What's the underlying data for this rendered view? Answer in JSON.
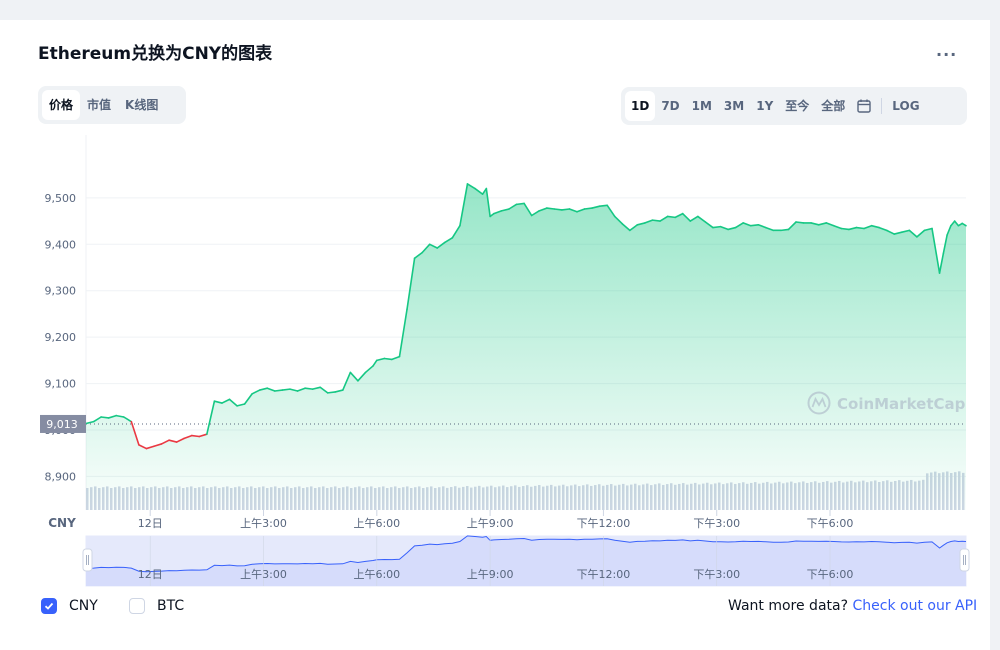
{
  "header": {
    "title": "Ethereum兑换为CNY的图表",
    "more": "..."
  },
  "tabs": [
    "价格",
    "市值",
    "K线图"
  ],
  "ranges": [
    "1D",
    "7D",
    "1M",
    "3M",
    "1Y",
    "至今",
    "全部"
  ],
  "log_label": "LOG",
  "watermark": "CoinMarketCap",
  "currency_axis_label": "CNY",
  "current_price_label": "9,013",
  "legend": {
    "cny": "CNY",
    "btc": "BTC"
  },
  "footer": {
    "text": "Want more data?",
    "link": "Check out our API"
  },
  "colors": {
    "up": "#16c784",
    "down": "#ea3943",
    "accent": "#3861fb",
    "nav_line": "#3861fb"
  },
  "chart_data": {
    "type": "area",
    "ylim": [
      8860,
      9560
    ],
    "y_ticks": [
      8900,
      9000,
      9100,
      9200,
      9300,
      9400,
      9500
    ],
    "y_tick_labels": [
      "8,900",
      "9,000",
      "9,100",
      "9,200",
      "9,300",
      "9,400",
      "9,500"
    ],
    "x_tick_labels": [
      "12日",
      "上午3:00",
      "上午6:00",
      "上午9:00",
      "下午12:00",
      "下午3:00",
      "下午6:00"
    ],
    "x_tick_hours": [
      0,
      3,
      6,
      9,
      12,
      15,
      18
    ],
    "x_range_hours": [
      -1.7,
      21.6
    ],
    "reference_price": 9013,
    "price_series": {
      "hours": [
        -1.7,
        -1.5,
        -1.3,
        -1.1,
        -0.9,
        -0.7,
        -0.5,
        -0.3,
        -0.1,
        0.1,
        0.3,
        0.5,
        0.7,
        0.9,
        1.1,
        1.3,
        1.5,
        1.7,
        1.9,
        2.1,
        2.3,
        2.5,
        2.7,
        2.9,
        3.1,
        3.3,
        3.5,
        3.7,
        3.9,
        4.1,
        4.3,
        4.5,
        4.7,
        4.9,
        5.1,
        5.3,
        5.5,
        5.7,
        5.9,
        6.0,
        6.2,
        6.4,
        6.6,
        6.8,
        7.0,
        7.2,
        7.4,
        7.6,
        7.8,
        8.0,
        8.2,
        8.4,
        8.6,
        8.8,
        8.9,
        9.0,
        9.1,
        9.3,
        9.5,
        9.7,
        9.9,
        10.1,
        10.3,
        10.5,
        10.7,
        10.9,
        11.1,
        11.3,
        11.5,
        11.7,
        11.9,
        12.1,
        12.3,
        12.5,
        12.7,
        12.9,
        13.1,
        13.3,
        13.5,
        13.7,
        13.9,
        14.1,
        14.3,
        14.5,
        14.7,
        14.9,
        15.1,
        15.3,
        15.5,
        15.7,
        15.9,
        16.1,
        16.3,
        16.5,
        16.7,
        16.9,
        17.1,
        17.3,
        17.5,
        17.7,
        17.9,
        18.1,
        18.3,
        18.5,
        18.7,
        18.9,
        19.1,
        19.3,
        19.5,
        19.7,
        19.9,
        20.1,
        20.3,
        20.5,
        20.7,
        20.9,
        21.0,
        21.1,
        21.2,
        21.3,
        21.4,
        21.5,
        21.6
      ],
      "values": [
        9014,
        9018,
        9028,
        9026,
        9031,
        9028,
        9018,
        8968,
        8960,
        8965,
        8970,
        8978,
        8974,
        8982,
        8988,
        8986,
        8991,
        9062,
        9058,
        9066,
        9052,
        9056,
        9078,
        9086,
        9090,
        9084,
        9086,
        9088,
        9084,
        9090,
        9088,
        9092,
        9080,
        9082,
        9086,
        9124,
        9106,
        9124,
        9138,
        9150,
        9154,
        9152,
        9158,
        9260,
        9370,
        9382,
        9400,
        9392,
        9404,
        9414,
        9440,
        9530,
        9520,
        9508,
        9520,
        9460,
        9466,
        9472,
        9476,
        9486,
        9488,
        9462,
        9472,
        9478,
        9476,
        9474,
        9476,
        9470,
        9476,
        9478,
        9482,
        9484,
        9460,
        9444,
        9430,
        9442,
        9446,
        9452,
        9450,
        9460,
        9458,
        9466,
        9450,
        9460,
        9448,
        9436,
        9438,
        9432,
        9436,
        9446,
        9440,
        9442,
        9436,
        9430,
        9430,
        9432,
        9448,
        9446,
        9446,
        9442,
        9446,
        9440,
        9434,
        9432,
        9436,
        9434,
        9440,
        9436,
        9430,
        9422,
        9426,
        9430,
        9416,
        9430,
        9434,
        9338,
        9380,
        9420,
        9440,
        9450,
        9440,
        9445,
        9440
      ]
    },
    "volume_trend": "rising",
    "navigator_tick_labels": [
      "12日",
      "上午3:00",
      "上午6:00",
      "上午9:00",
      "下午12:00",
      "下午3:00",
      "下午6:00"
    ]
  }
}
